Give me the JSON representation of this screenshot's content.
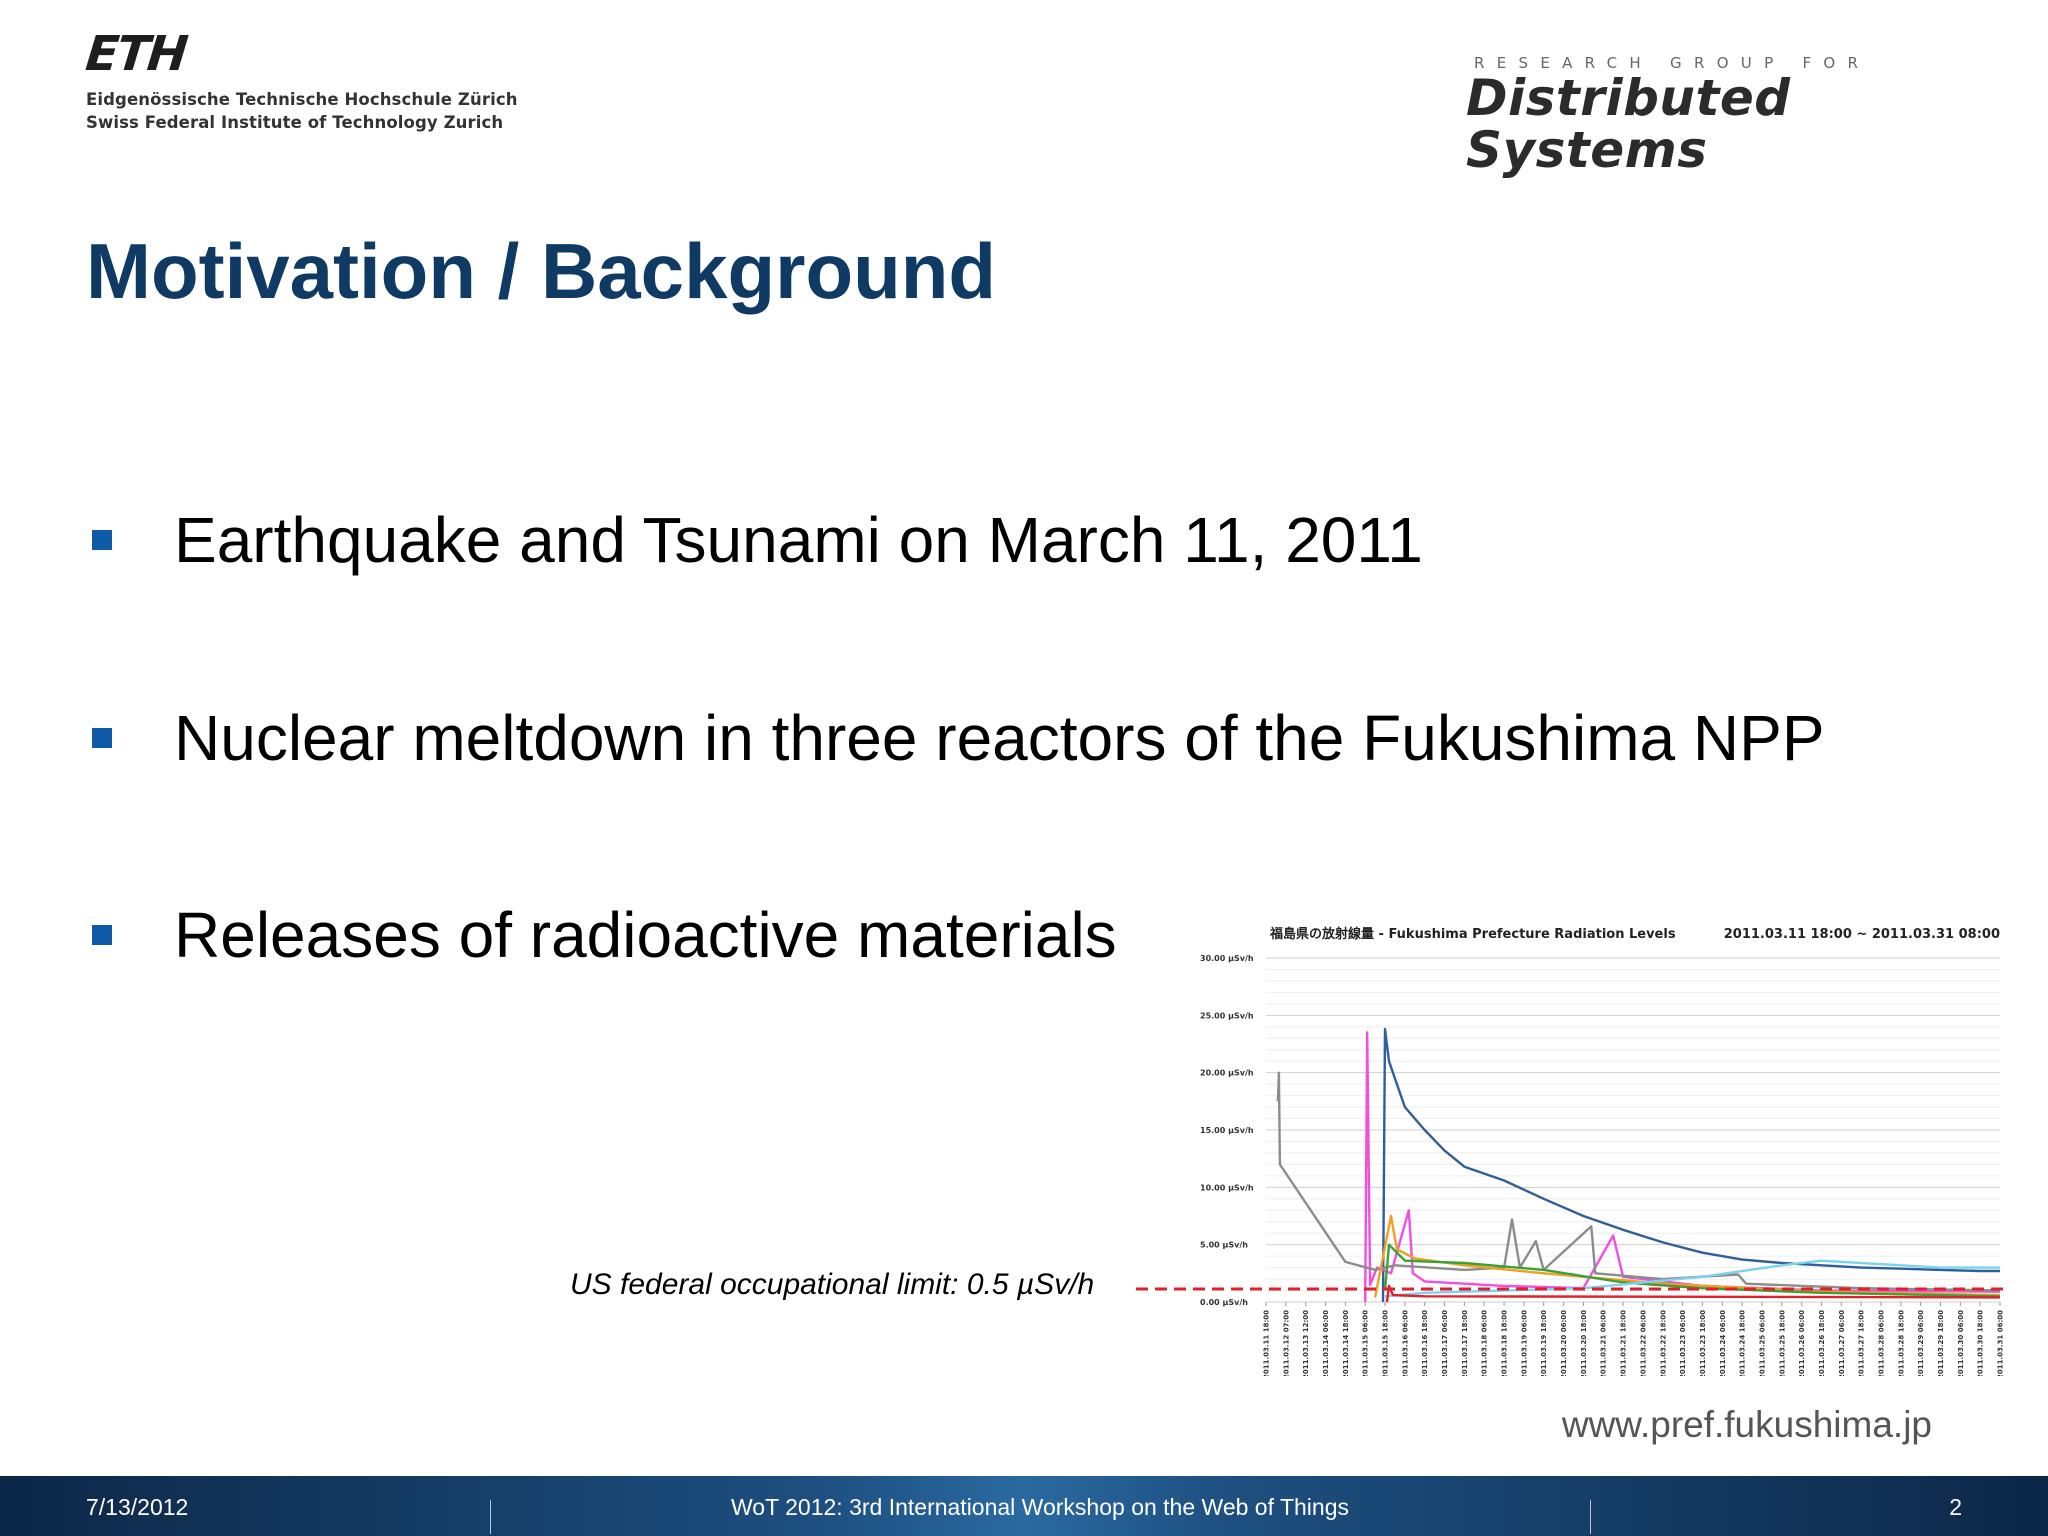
{
  "header": {
    "eth_logo": {
      "mark": "ETH",
      "line1": "Eidgenössische Technische Hochschule Zürich",
      "line2": "Swiss Federal Institute of Technology Zurich"
    },
    "group_logo": {
      "kicker": "RESEARCH GROUP FOR",
      "name": "Distributed Systems"
    }
  },
  "slide": {
    "title": "Motivation / Background",
    "bullets": [
      "Earthquake and Tsunami on March 11, 2011",
      "Nuclear meltdown in three reactors of the Fukushima NPP",
      "Releases of radioactive materials"
    ],
    "limit_label": "US federal occupational limit: 0.5 µSv/h",
    "source": "www.pref.fukushima.jp"
  },
  "colors": {
    "title": "#0f3a63",
    "bullet": "#0e5aa7",
    "limit_line": "#e0202a"
  },
  "chart_data": {
    "type": "line",
    "title": "福島県の放射線量 - Fukushima Prefecture Radiation Levels",
    "date_range": "2011.03.11 18:00 ~ 2011.03.31 08:00",
    "ylim": [
      0,
      30
    ],
    "y_ticks": [
      0,
      5,
      10,
      15,
      20,
      25,
      30
    ],
    "y_tick_labels": [
      "0.00 µSv/h",
      "5.00 µSv/h",
      "10.00 µSv/h",
      "15.00 µSv/h",
      "20.00 µSv/h",
      "25.00 µSv/h",
      "30.00 µSv/h"
    ],
    "x_tick_labels": [
      "2011.03.11 18:00",
      "2011.03.12 07:00",
      "2011.03.13 12:00",
      "2011.03.14 06:00",
      "2011.03.14 18:00",
      "2011.03.15 06:00",
      "2011.03.15 18:00",
      "2011.03.16 06:00",
      "2011.03.16 18:00",
      "2011.03.17 06:00",
      "2011.03.17 18:00",
      "2011.03.18 06:00",
      "2011.03.18 18:00",
      "2011.03.19 06:00",
      "2011.03.19 18:00",
      "2011.03.20 06:00",
      "2011.03.20 18:00",
      "2011.03.21 06:00",
      "2011.03.21 18:00",
      "2011.03.22 06:00",
      "2011.03.22 18:00",
      "2011.03.23 06:00",
      "2011.03.23 18:00",
      "2011.03.24 06:00",
      "2011.03.24 18:00",
      "2011.03.25 06:00",
      "2011.03.25 18:00",
      "2011.03.26 06:00",
      "2011.03.26 18:00",
      "2011.03.27 06:00",
      "2011.03.27 18:00",
      "2011.03.28 06:00",
      "2011.03.28 18:00",
      "2011.03.29 06:00",
      "2011.03.29 18:00",
      "2011.03.30 06:00",
      "2011.03.30 18:00",
      "2011.03.31 06:00"
    ],
    "grid": true,
    "limit_value": 0.5,
    "series": [
      {
        "color": "#2f5f98",
        "points": [
          [
            5.9,
            0
          ],
          [
            6.0,
            23.8
          ],
          [
            6.2,
            21
          ],
          [
            6.5,
            19.5
          ],
          [
            7.0,
            17
          ],
          [
            8,
            15
          ],
          [
            9,
            13.2
          ],
          [
            10,
            11.8
          ],
          [
            12,
            10.6
          ],
          [
            14,
            9
          ],
          [
            16,
            7.5
          ],
          [
            18,
            6.3
          ],
          [
            20,
            5.2
          ],
          [
            22,
            4.3
          ],
          [
            24,
            3.7
          ],
          [
            26,
            3.4
          ],
          [
            28,
            3.2
          ],
          [
            30,
            3.0
          ],
          [
            32,
            2.9
          ],
          [
            34,
            2.8
          ],
          [
            36,
            2.7
          ],
          [
            37,
            2.7
          ]
        ]
      },
      {
        "color": "#f24ee0",
        "points": [
          [
            5.0,
            0
          ],
          [
            5.1,
            23.5
          ],
          [
            5.25,
            1.5
          ],
          [
            5.6,
            3.0
          ],
          [
            6.3,
            2.5
          ],
          [
            7.2,
            8
          ],
          [
            7.4,
            2.5
          ],
          [
            8,
            1.8
          ],
          [
            12,
            1.4
          ],
          [
            16,
            1.2
          ],
          [
            17.5,
            5.8
          ],
          [
            18,
            2.2
          ],
          [
            22,
            1.4
          ],
          [
            28,
            1.0
          ],
          [
            37,
            0.9
          ]
        ]
      },
      {
        "color": "#8c8c8c",
        "points": [
          [
            0.6,
            17.5
          ],
          [
            0.65,
            20
          ],
          [
            0.7,
            12
          ],
          [
            4,
            3.5
          ],
          [
            5.5,
            2.8
          ],
          [
            6.5,
            3.2
          ],
          [
            10,
            2.8
          ],
          [
            12,
            3.0
          ],
          [
            12.4,
            7.2
          ],
          [
            12.8,
            3.0
          ],
          [
            13.6,
            5.3
          ],
          [
            14,
            2.8
          ],
          [
            16.4,
            6.6
          ],
          [
            16.6,
            2.5
          ],
          [
            20,
            2.0
          ],
          [
            23.8,
            2.4
          ],
          [
            24.2,
            1.6
          ],
          [
            30,
            1.2
          ],
          [
            37,
            1.0
          ]
        ]
      },
      {
        "color": "#f0a020",
        "points": [
          [
            5.5,
            0.4
          ],
          [
            6.3,
            7.5
          ],
          [
            6.6,
            4.6
          ],
          [
            7.5,
            3.8
          ],
          [
            10,
            3.2
          ],
          [
            14,
            2.5
          ],
          [
            20,
            1.6
          ],
          [
            28,
            0.9
          ],
          [
            37,
            0.6
          ]
        ]
      },
      {
        "color": "#3aa03a",
        "points": [
          [
            6.0,
            1
          ],
          [
            6.2,
            5.0
          ],
          [
            7,
            3.6
          ],
          [
            10,
            3.4
          ],
          [
            14,
            2.8
          ],
          [
            18,
            1.7
          ],
          [
            22,
            1.2
          ],
          [
            28,
            0.8
          ],
          [
            37,
            0.5
          ]
        ]
      },
      {
        "color": "#7ad4f0",
        "points": [
          [
            6.0,
            0.5
          ],
          [
            8,
            0.8
          ],
          [
            16,
            1.2
          ],
          [
            22,
            2.2
          ],
          [
            26,
            3.2
          ],
          [
            28,
            3.6
          ],
          [
            32,
            3.2
          ],
          [
            34,
            3.0
          ],
          [
            37,
            3.0
          ]
        ]
      },
      {
        "color": "#e0202a",
        "points": [
          [
            6.1,
            0
          ],
          [
            6.2,
            1.4
          ],
          [
            6.4,
            0.6
          ],
          [
            8,
            0.5
          ],
          [
            37,
            0.4
          ]
        ]
      }
    ]
  },
  "footer": {
    "date": "7/13/2012",
    "title": "WoT 2012: 3rd International Workshop on the Web of Things",
    "page": "2"
  }
}
